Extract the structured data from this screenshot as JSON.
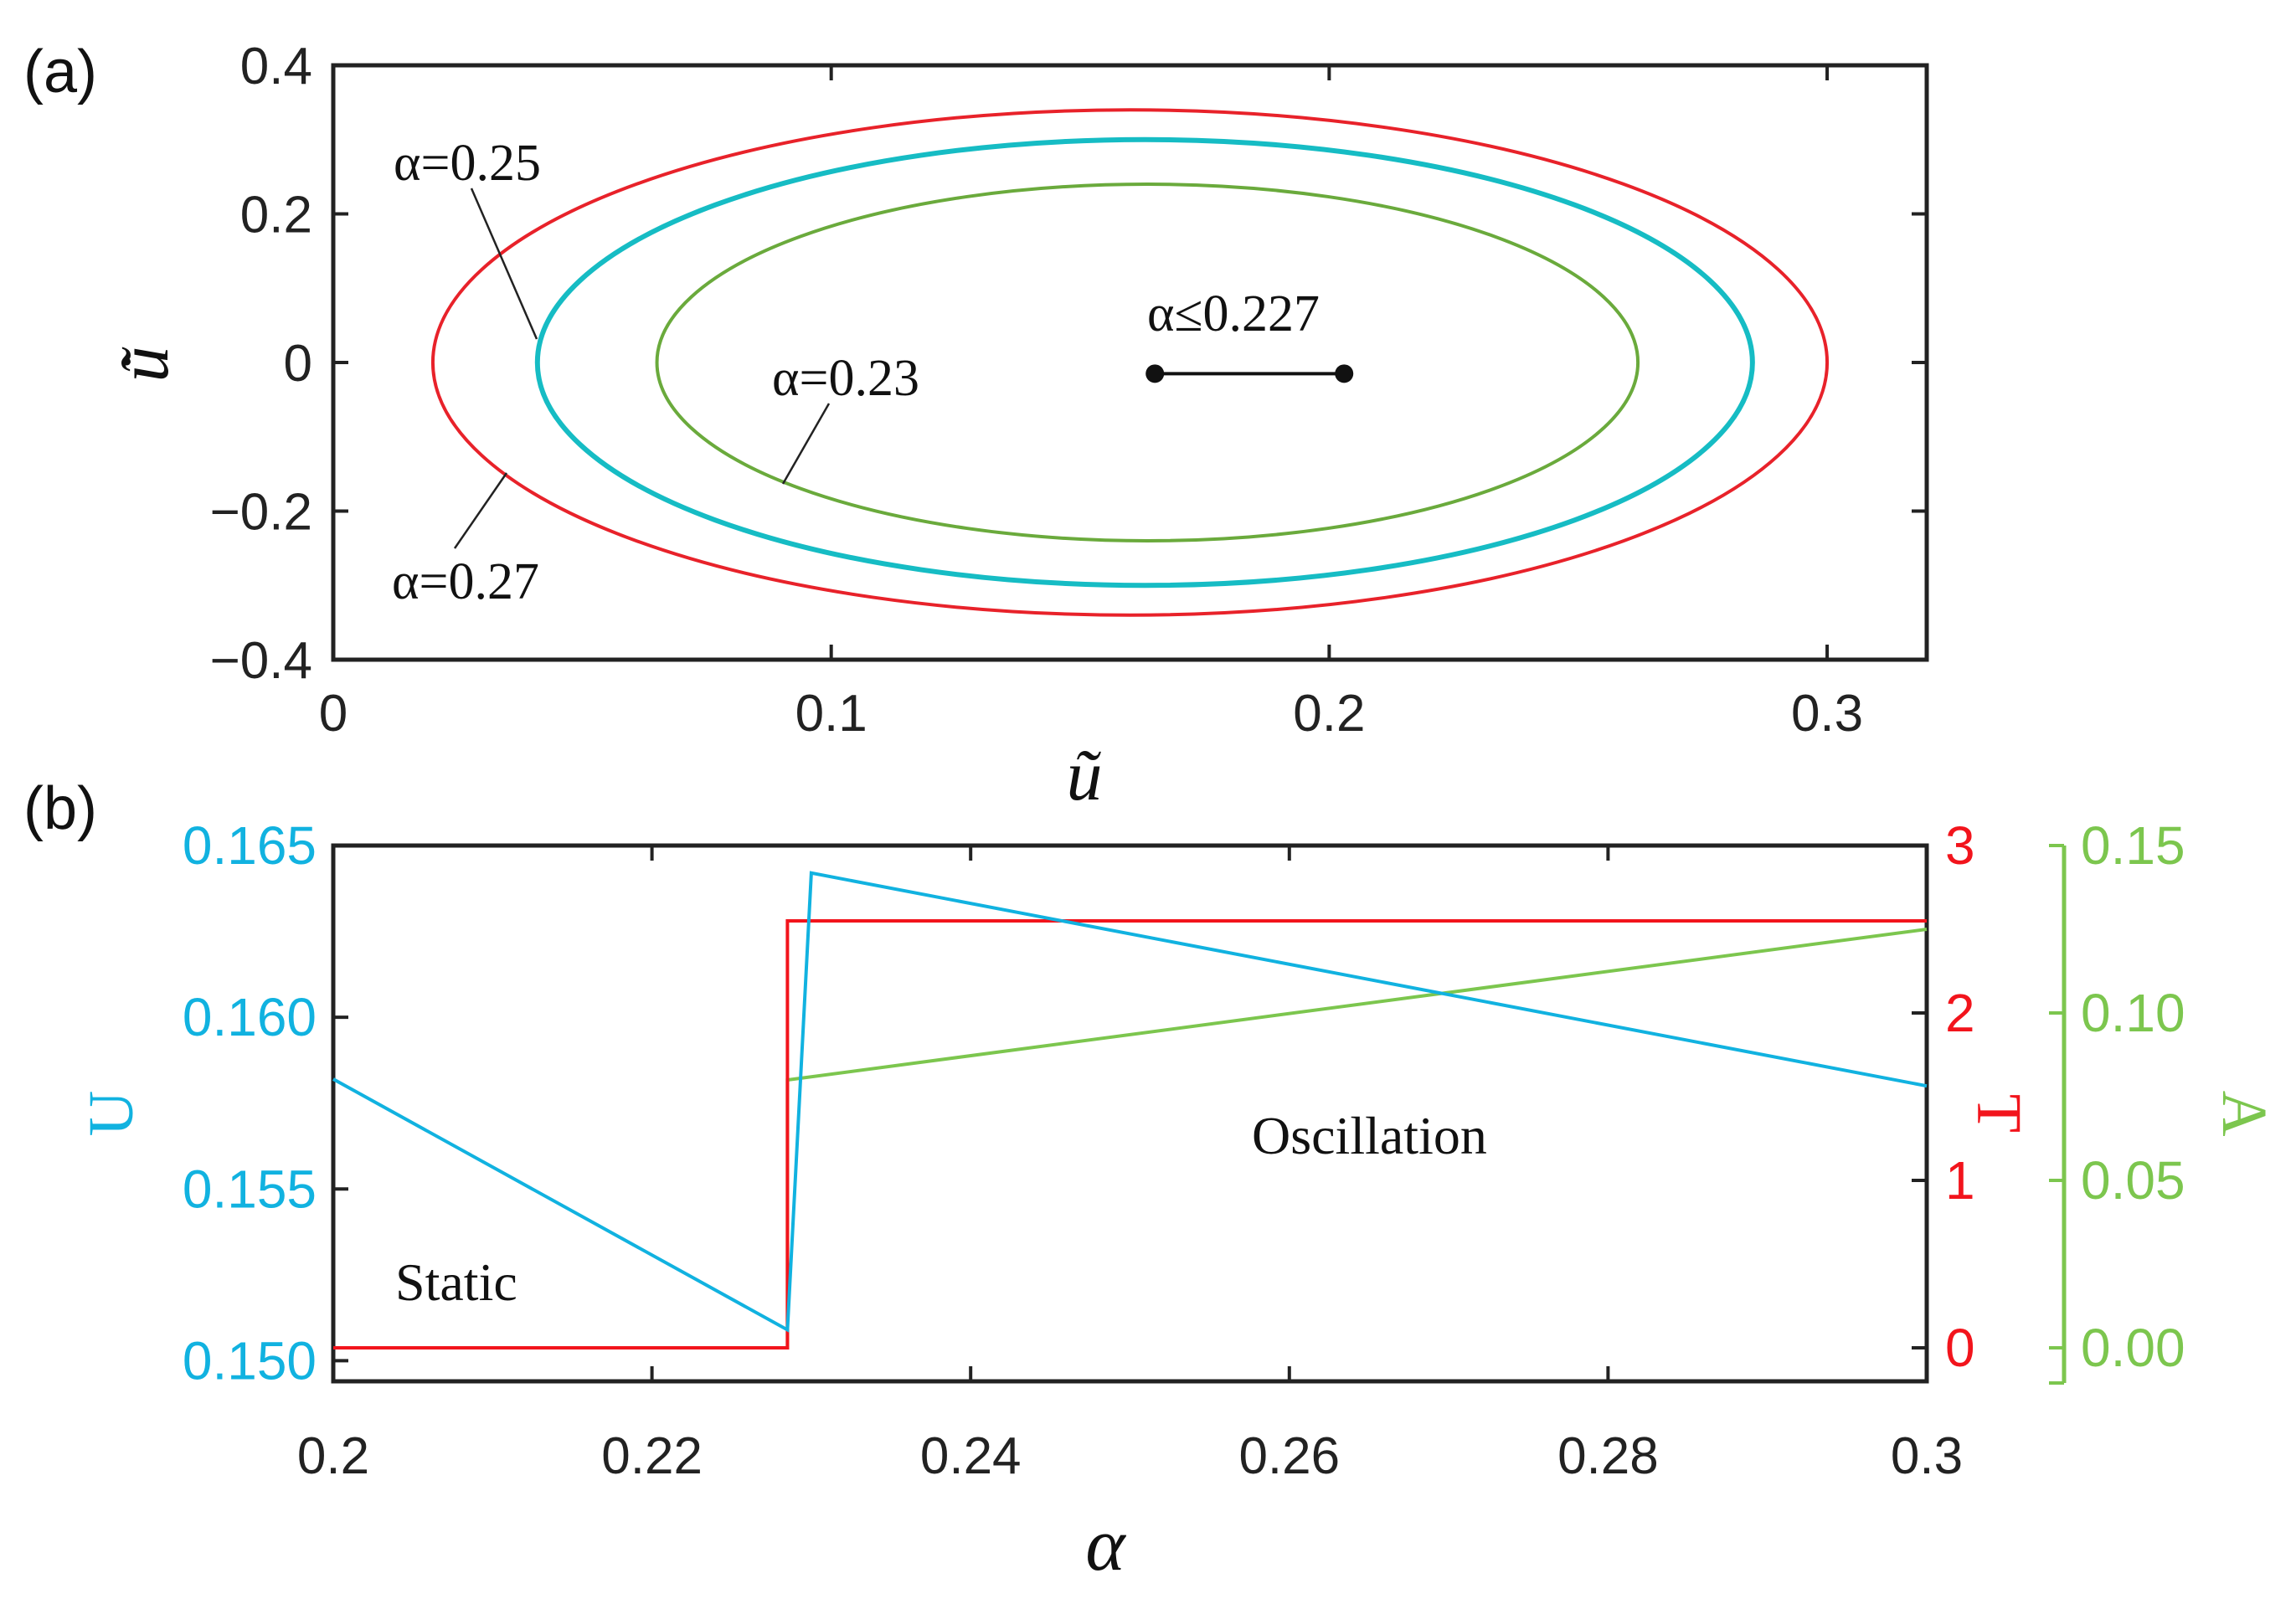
{
  "chart_data": [
    {
      "panel_label": "(a)",
      "type": "line",
      "xlabel": "ũ",
      "ylabel": "u̇̃",
      "xlim": [
        0,
        0.32
      ],
      "ylim": [
        -0.4,
        0.4
      ],
      "xticks": [
        {
          "value": 0,
          "label": "0"
        },
        {
          "value": 0.1,
          "label": "0.1"
        },
        {
          "value": 0.2,
          "label": "0.2"
        },
        {
          "value": 0.3,
          "label": "0.3"
        }
      ],
      "yticks": [
        {
          "value": 0.4,
          "label": "0.4"
        },
        {
          "value": 0.2,
          "label": "0.2"
        },
        {
          "value": 0,
          "label": "0"
        },
        {
          "value": -0.2,
          "label": "−0.2"
        },
        {
          "value": -0.4,
          "label": "−0.4"
        }
      ],
      "series": [
        {
          "name": "α=0.27",
          "shape": "ellipse",
          "color": "#e8222a",
          "x_range": [
            0.02,
            0.3
          ],
          "y_amplitude": 0.34
        },
        {
          "name": "α=0.25",
          "shape": "ellipse",
          "color": "#16bcc4",
          "x_range": [
            0.041,
            0.285
          ],
          "y_amplitude": 0.3
        },
        {
          "name": "α=0.23",
          "shape": "ellipse",
          "color": "#6aaa3c",
          "x_range": [
            0.065,
            0.262
          ],
          "y_amplitude": 0.24
        },
        {
          "name": "α≤0.227",
          "shape": "segment",
          "color": "#111111",
          "x": [
            0.165,
            0.203
          ],
          "y": [
            -0.015,
            -0.015
          ]
        }
      ],
      "annotations": [
        {
          "text": "α=0.25",
          "target": "cyan ellipse left edge"
        },
        {
          "text": "α=0.23",
          "target": "green ellipse lower-left"
        },
        {
          "text": "α=0.27",
          "target": "red ellipse lower-left"
        },
        {
          "text": "α≤0.227",
          "target": "black segment"
        }
      ]
    },
    {
      "panel_label": "(b)",
      "type": "line",
      "xlabel": "α",
      "xlim": [
        0.2,
        0.3
      ],
      "xticks": [
        {
          "value": 0.2,
          "label": "0.2"
        },
        {
          "value": 0.22,
          "label": "0.22"
        },
        {
          "value": 0.24,
          "label": "0.24"
        },
        {
          "value": 0.26,
          "label": "0.26"
        },
        {
          "value": 0.28,
          "label": "0.28"
        },
        {
          "value": 0.3,
          "label": "0.3"
        }
      ],
      "axes": {
        "U": {
          "label": "U",
          "color": "#11b2e0",
          "ylim": [
            0.1494,
            0.165
          ],
          "ticks": [
            {
              "value": 0.165,
              "label": "0.165"
            },
            {
              "value": 0.16,
              "label": "0.160"
            },
            {
              "value": 0.155,
              "label": "0.155"
            },
            {
              "value": 0.15,
              "label": "0.150"
            }
          ]
        },
        "T": {
          "label": "T",
          "color": "#f2141c",
          "ylim": [
            -0.2,
            3
          ],
          "ticks": [
            {
              "value": 3,
              "label": "3"
            },
            {
              "value": 2,
              "label": "2"
            },
            {
              "value": 1,
              "label": "1"
            },
            {
              "value": 0,
              "label": "0"
            }
          ]
        },
        "A": {
          "label": "A",
          "color": "#7cc64e",
          "ylim": [
            -0.01,
            0.15
          ],
          "ticks": [
            {
              "value": 0.15,
              "label": "0.15"
            },
            {
              "value": 0.1,
              "label": "0.10"
            },
            {
              "value": 0.05,
              "label": "0.05"
            },
            {
              "value": 0,
              "label": "0.00"
            }
          ]
        }
      },
      "series": [
        {
          "name": "U",
          "axis": "U",
          "color": "#11b2e0",
          "x": [
            0.2,
            0.2285,
            0.2285,
            0.23,
            0.3
          ],
          "y": [
            0.1582,
            0.1509,
            0.1509,
            0.1642,
            0.158
          ]
        },
        {
          "name": "T",
          "axis": "T",
          "color": "#f2141c",
          "x": [
            0.2,
            0.2285,
            0.2285,
            0.3
          ],
          "y": [
            0,
            0,
            2.55,
            2.55
          ]
        },
        {
          "name": "A",
          "axis": "A",
          "color": "#7cc64e",
          "x": [
            0.2,
            0.2285,
            0.2285,
            0.3
          ],
          "y": [
            0,
            0,
            0.08,
            0.125
          ]
        }
      ],
      "annotations": [
        {
          "text": "Static",
          "region": "left"
        },
        {
          "text": "Oscillation",
          "region": "right"
        }
      ]
    }
  ]
}
